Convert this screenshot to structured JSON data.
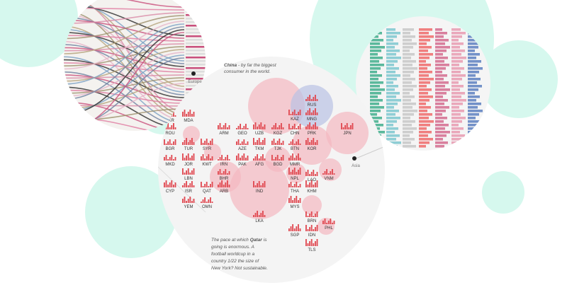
{
  "labels": {
    "europe": "Europe",
    "asia": "Asia"
  },
  "annotations": {
    "china": {
      "bold": "China",
      "rest": [
        "- by far the biggest",
        "consumer in the world."
      ]
    },
    "qatar": {
      "lines": [
        "The pace at which",
        "going is enormous. A",
        "football worldcup in a",
        "country 1/22 the size of",
        "New York? Not sustainable."
      ],
      "bold": "Qatar",
      "after_bold": "is"
    }
  },
  "countries": [
    "LKR",
    "MDA",
    "ROU",
    "BGR",
    "TUR",
    "SYR",
    "MKD",
    "JOR",
    "KWT",
    "IRN",
    "PAK",
    "AFG",
    "BGD",
    "MMR",
    "LBN",
    "BHR",
    "NPL",
    "LAO",
    "VNM",
    "CYP",
    "ISR",
    "QAT",
    "ARB",
    "IND",
    "THA",
    "KHM",
    "YEM",
    "OMN",
    "MYS",
    "LKA",
    "BRN",
    "SGP",
    "IDN",
    "PHL",
    "TLS",
    "ARM",
    "GEO",
    "UZB",
    "KGZ",
    "CHN",
    "PRK",
    "JPN",
    "AZE",
    "TKM",
    "TJK",
    "BTN",
    "KOR",
    "RUS",
    "KAZ",
    "MNG"
  ]
}
